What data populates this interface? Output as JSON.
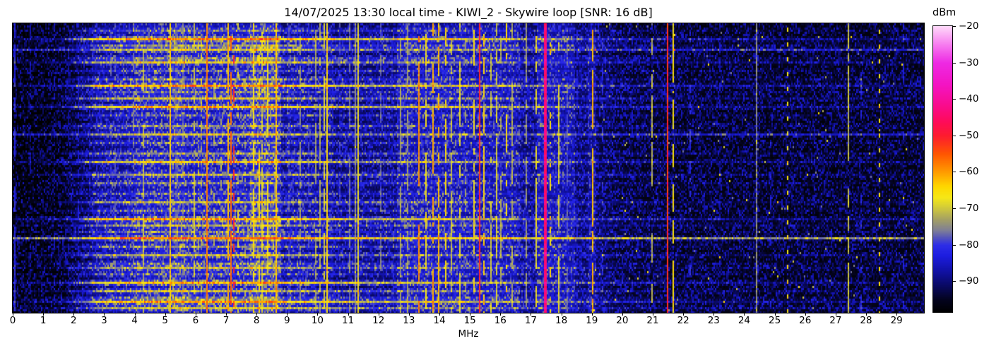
{
  "figure": {
    "title": "14/07/2025 13:30 local time - KIWI_2 - Skywire loop [SNR: 16 dB]",
    "background": "#ffffff"
  },
  "chart_data": {
    "type": "heatmap",
    "subtype": "radio-spectrum-waterfall",
    "title": "14/07/2025 13:30 local time - KIWI_2 - Skywire loop [SNR: 16 dB]",
    "xlabel": "MHz",
    "x_range": [
      0,
      29.9
    ],
    "x_ticks": [
      0,
      1,
      2,
      3,
      4,
      5,
      6,
      7,
      8,
      9,
      10,
      11,
      12,
      13,
      14,
      15,
      16,
      17,
      18,
      19,
      20,
      21,
      22,
      23,
      24,
      25,
      26,
      27,
      28,
      29
    ],
    "y_ticks": [],
    "grid": false,
    "value_range": [
      -98.5,
      -20
    ],
    "colorbar": {
      "label": "dBm",
      "ticks": [
        -20,
        -30,
        -40,
        -50,
        -60,
        -70,
        -80,
        -90
      ],
      "vmax": -20,
      "vmin": -98.5
    },
    "colormap_stops": [
      [
        -98.5,
        "#000000"
      ],
      [
        -95,
        "#04041f"
      ],
      [
        -91,
        "#0a0a66"
      ],
      [
        -87,
        "#1212a8"
      ],
      [
        -83,
        "#1d1de0"
      ],
      [
        -80,
        "#2e2ee8"
      ],
      [
        -78,
        "#5555bb"
      ],
      [
        -76,
        "#7f7f97"
      ],
      [
        -73,
        "#a5a165"
      ],
      [
        -70,
        "#cfc83e"
      ],
      [
        -67,
        "#f6e818"
      ],
      [
        -64,
        "#ffd800"
      ],
      [
        -60,
        "#ff9c00"
      ],
      [
        -55,
        "#ff5602"
      ],
      [
        -50,
        "#fd1c30"
      ],
      [
        -46,
        "#ff0b5c"
      ],
      [
        -42,
        "#fa0c8b"
      ],
      [
        -36,
        "#f414c4"
      ],
      [
        -30,
        "#ee2ae4"
      ],
      [
        -25,
        "#f77df0"
      ],
      [
        -20,
        "#ffdafa"
      ]
    ],
    "noise_floor": [
      [
        0,
        -99.5
      ],
      [
        1.6,
        -99
      ],
      [
        2.2,
        -96
      ],
      [
        3,
        -93.5
      ],
      [
        4,
        -92
      ],
      [
        8.8,
        -92
      ],
      [
        10,
        -93.5
      ],
      [
        12.5,
        -93
      ],
      [
        13,
        -92
      ],
      [
        16.5,
        -92.5
      ],
      [
        19,
        -94
      ],
      [
        20,
        -96.5
      ],
      [
        22,
        -97.5
      ],
      [
        29.9,
        -97.5
      ]
    ],
    "bands": [
      [
        2.6,
        4.0,
        2
      ],
      [
        4.0,
        8.8,
        4
      ],
      [
        5.25,
        5.65,
        2
      ],
      [
        7.8,
        8.7,
        3
      ],
      [
        9.0,
        10.5,
        2
      ],
      [
        12.6,
        16.6,
        3
      ],
      [
        17.2,
        18.45,
        4
      ],
      [
        18.85,
        19.15,
        3
      ]
    ],
    "burst_profile": [
      [
        0,
        0.2
      ],
      [
        1.5,
        0.3
      ],
      [
        2.8,
        1
      ],
      [
        9,
        1
      ],
      [
        12,
        0.8
      ],
      [
        16,
        0.6
      ],
      [
        19,
        0.4
      ],
      [
        22,
        0.28
      ],
      [
        30,
        0.2
      ]
    ],
    "bursts": [
      [
        0.02,
        7,
        0
      ],
      [
        0.055,
        24,
        0
      ],
      [
        0.075,
        10,
        0
      ],
      [
        0.09,
        15,
        0.75
      ],
      [
        0.115,
        8,
        0
      ],
      [
        0.134,
        16,
        0
      ],
      [
        0.165,
        7,
        0
      ],
      [
        0.19,
        9,
        0
      ],
      [
        0.21,
        23,
        0
      ],
      [
        0.235,
        8,
        0
      ],
      [
        0.255,
        14,
        0
      ],
      [
        0.29,
        22,
        0
      ],
      [
        0.315,
        7,
        0
      ],
      [
        0.35,
        9,
        0
      ],
      [
        0.38,
        15,
        0.75
      ],
      [
        0.41,
        7,
        0
      ],
      [
        0.445,
        10,
        0
      ],
      [
        0.48,
        18,
        0
      ],
      [
        0.52,
        13,
        0
      ],
      [
        0.555,
        8,
        0
      ],
      [
        0.59,
        7,
        0
      ],
      [
        0.615,
        12,
        0
      ],
      [
        0.645,
        8,
        0
      ],
      [
        0.675,
        22,
        0
      ],
      [
        0.7,
        13,
        0
      ],
      [
        0.72,
        8,
        0
      ],
      [
        0.744,
        27,
        0.75
      ],
      [
        0.77,
        9,
        0
      ],
      [
        0.8,
        14,
        0
      ],
      [
        0.83,
        8,
        0
      ],
      [
        0.845,
        13,
        0
      ],
      [
        0.87,
        7,
        0
      ],
      [
        0.9,
        21,
        0
      ],
      [
        0.925,
        13,
        0
      ],
      [
        0.945,
        8,
        0
      ],
      [
        0.963,
        22,
        0
      ],
      [
        0.985,
        15,
        0
      ]
    ],
    "signals": [
      [
        0.03,
        0.05,
        -82,
        "d"
      ],
      [
        0.55,
        0.04,
        -88,
        "s"
      ],
      [
        1.35,
        0.04,
        -87,
        "s"
      ],
      [
        1.8,
        0.04,
        -89,
        "s"
      ],
      [
        2.13,
        0.04,
        -85,
        "s"
      ],
      [
        2.5,
        0.04,
        -86,
        "s"
      ],
      [
        3.2,
        0.04,
        -80,
        "s"
      ],
      [
        3.33,
        0.04,
        -78,
        "s"
      ],
      [
        3.6,
        0.04,
        -83,
        "s"
      ],
      [
        3.8,
        0.04,
        -81,
        "s"
      ],
      [
        3.95,
        0.04,
        -76,
        "s"
      ],
      [
        4.27,
        0.05,
        -72,
        "d"
      ],
      [
        4.47,
        0.04,
        -79,
        "s"
      ],
      [
        4.65,
        0.04,
        -80,
        "d"
      ],
      [
        4.88,
        0.04,
        -77,
        "s"
      ],
      [
        5.16,
        0.05,
        -65,
        "c"
      ],
      [
        5.36,
        0.07,
        -79,
        "d"
      ],
      [
        5.56,
        0.05,
        -77,
        "d"
      ],
      [
        5.75,
        0.04,
        -80,
        "s"
      ],
      [
        5.93,
        0.05,
        -71,
        "d"
      ],
      [
        6.07,
        0.05,
        -73,
        "s"
      ],
      [
        6.18,
        0.05,
        -72,
        "s"
      ],
      [
        6.37,
        0.05,
        -59,
        "c"
      ],
      [
        6.6,
        0.04,
        -74,
        "s"
      ],
      [
        6.8,
        0.04,
        -72,
        "s"
      ],
      [
        7.05,
        0.05,
        -63,
        "d"
      ],
      [
        7.12,
        0.04,
        -57,
        "d"
      ],
      [
        7.22,
        0.04,
        -52,
        "s"
      ],
      [
        7.35,
        0.04,
        -69,
        "s"
      ],
      [
        7.6,
        0.04,
        -73,
        "s"
      ],
      [
        7.9,
        0.06,
        -67,
        "d"
      ],
      [
        8.05,
        0.05,
        -66,
        "d"
      ],
      [
        8.18,
        0.05,
        -70,
        "d"
      ],
      [
        8.36,
        0.05,
        -68,
        "d"
      ],
      [
        8.6,
        0.05,
        -64,
        "c"
      ],
      [
        9.05,
        0.04,
        -79,
        "s"
      ],
      [
        9.4,
        0.04,
        -75,
        "d"
      ],
      [
        9.68,
        0.04,
        -80,
        "s"
      ],
      [
        9.9,
        0.04,
        -74,
        "d"
      ],
      [
        10.05,
        0.05,
        -73,
        "d"
      ],
      [
        10.18,
        0.05,
        -70,
        "d"
      ],
      [
        10.3,
        0.05,
        -66,
        "c"
      ],
      [
        10.7,
        0.04,
        -80,
        "s"
      ],
      [
        11.05,
        0.04,
        -77,
        "d"
      ],
      [
        11.2,
        0.04,
        -76,
        "c"
      ],
      [
        11.3,
        0.04,
        -69,
        "c"
      ],
      [
        12.06,
        0.04,
        -78,
        "d"
      ],
      [
        12.68,
        0.05,
        -74,
        "d"
      ],
      [
        12.95,
        0.05,
        -75,
        "d"
      ],
      [
        13.3,
        0.05,
        -60,
        "d"
      ],
      [
        13.55,
        0.05,
        -68,
        "d"
      ],
      [
        13.78,
        0.05,
        -62,
        "d"
      ],
      [
        13.95,
        0.05,
        -63,
        "d"
      ],
      [
        14.2,
        0.05,
        -66,
        "d"
      ],
      [
        14.35,
        0.05,
        -72,
        "d"
      ],
      [
        14.65,
        0.05,
        -69,
        "d"
      ],
      [
        14.85,
        0.04,
        -75,
        "s"
      ],
      [
        15.1,
        0.05,
        -68,
        "d"
      ],
      [
        15.28,
        0.05,
        -52,
        "c"
      ],
      [
        15.45,
        0.05,
        -65,
        "d"
      ],
      [
        15.65,
        0.05,
        -71,
        "d"
      ],
      [
        15.85,
        0.05,
        -70,
        "d"
      ],
      [
        16.0,
        0.05,
        -73,
        "d"
      ],
      [
        16.18,
        0.05,
        -66,
        "d"
      ],
      [
        16.35,
        0.05,
        -73,
        "d"
      ],
      [
        16.6,
        0.04,
        -79,
        "s"
      ],
      [
        16.82,
        0.04,
        -75,
        "d"
      ],
      [
        17.15,
        0.04,
        -69,
        "d"
      ],
      [
        17.49,
        0.07,
        -45,
        "c"
      ],
      [
        17.6,
        0.04,
        -65,
        "s"
      ],
      [
        17.9,
        0.04,
        -70,
        "d"
      ],
      [
        18.15,
        0.05,
        -79,
        "d"
      ],
      [
        18.5,
        0.04,
        -83,
        "s"
      ],
      [
        19.0,
        0.06,
        -63,
        "d"
      ],
      [
        19.35,
        0.04,
        -81,
        "s"
      ],
      [
        20.3,
        0.04,
        -86,
        "s"
      ],
      [
        20.95,
        0.04,
        -73,
        "d"
      ],
      [
        21.47,
        0.04,
        -53,
        "c"
      ],
      [
        21.63,
        0.04,
        -67,
        "d"
      ],
      [
        22.2,
        0.05,
        -81,
        "s"
      ],
      [
        23.2,
        0.04,
        -86,
        "s"
      ],
      [
        24.4,
        0.04,
        -77,
        "c"
      ],
      [
        24.85,
        0.04,
        -84,
        "s"
      ],
      [
        25.4,
        0.04,
        -67,
        "p"
      ],
      [
        26.3,
        0.04,
        -87,
        "s"
      ],
      [
        27.38,
        0.05,
        -72,
        "d"
      ],
      [
        27.8,
        0.04,
        -83,
        "s"
      ],
      [
        28.42,
        0.04,
        -67,
        "p"
      ],
      [
        29.2,
        0.04,
        -84,
        "s"
      ]
    ]
  }
}
